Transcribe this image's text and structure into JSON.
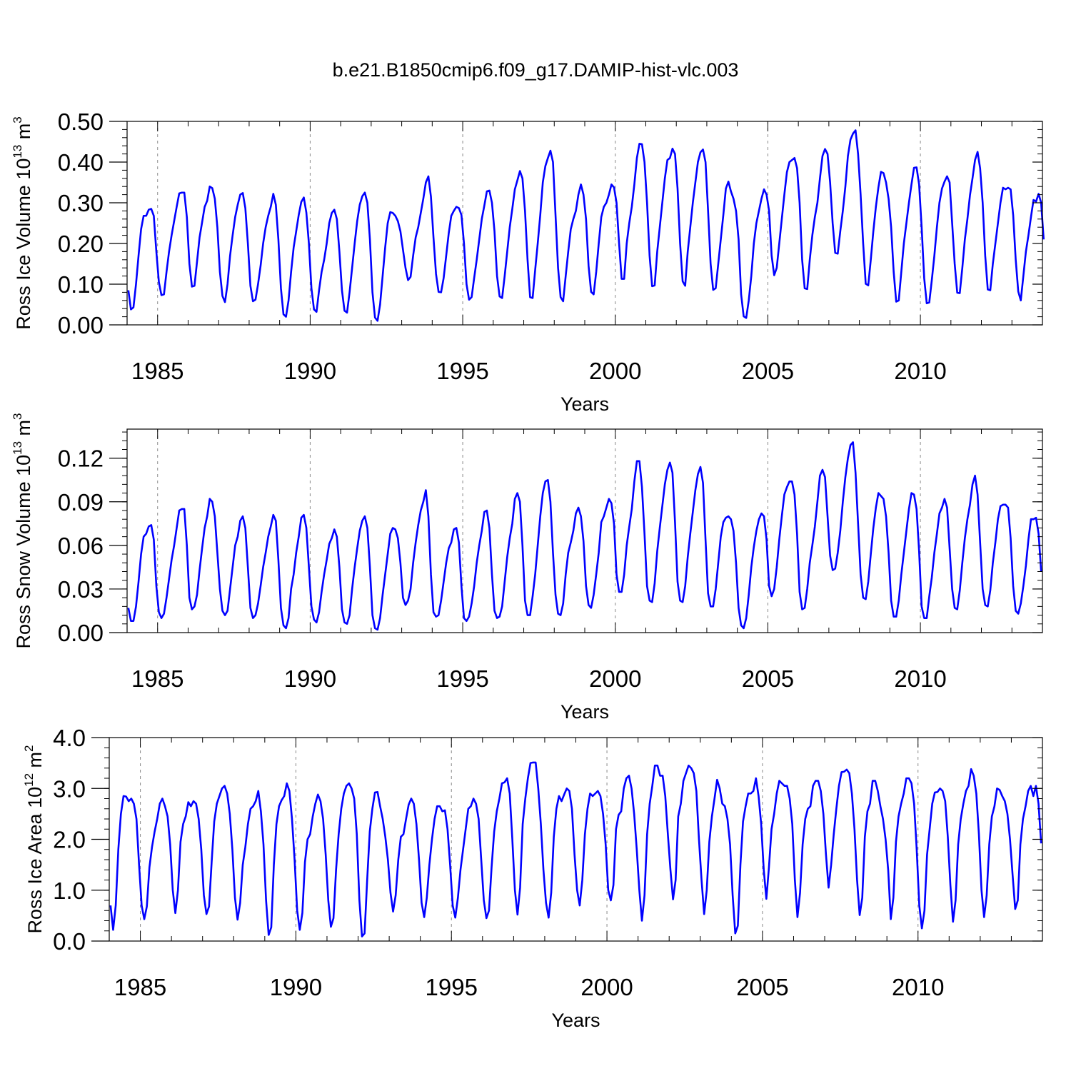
{
  "title": "b.e21.B1850cmip6.f09_g17.DAMIP-hist-vlc.003",
  "colors": {
    "line": "#0000ff",
    "axis": "#000000",
    "grid": "#888888"
  },
  "chart_data": [
    {
      "type": "line",
      "ylabel_main": "Ross Ice Volume 10",
      "ylabel_exp": "13",
      "ylabel_unit": " m",
      "ylabel_unit_exp": "3",
      "xlabel": "Years",
      "xlim": [
        1984.0,
        2014.0
      ],
      "ylim": [
        0.0,
        0.5
      ],
      "x_ticks": [
        1985,
        1990,
        1995,
        2000,
        2005,
        2010
      ],
      "x_tick_labels": [
        "1985",
        "1990",
        "1995",
        "2000",
        "2005",
        "2010"
      ],
      "y_ticks": [
        0.0,
        0.1,
        0.2,
        0.3,
        0.4,
        0.5
      ],
      "y_tick_labels": [
        "0.00",
        "0.10",
        "0.20",
        "0.30",
        "0.40",
        "0.50"
      ],
      "grid": "dashed vertical lines at major x ticks",
      "x_start": 1984.042,
      "x_step": 0.08333,
      "values": [
        0.085,
        0.038,
        0.043,
        0.1,
        0.17,
        0.235,
        0.268,
        0.268,
        0.283,
        0.285,
        0.268,
        0.18,
        0.105,
        0.073,
        0.075,
        0.13,
        0.18,
        0.22,
        0.255,
        0.29,
        0.323,
        0.325,
        0.325,
        0.265,
        0.15,
        0.094,
        0.096,
        0.155,
        0.215,
        0.252,
        0.29,
        0.305,
        0.34,
        0.336,
        0.31,
        0.24,
        0.13,
        0.071,
        0.056,
        0.1,
        0.17,
        0.22,
        0.265,
        0.295,
        0.32,
        0.324,
        0.287,
        0.2,
        0.096,
        0.058,
        0.062,
        0.1,
        0.145,
        0.2,
        0.24,
        0.268,
        0.29,
        0.322,
        0.295,
        0.21,
        0.09,
        0.026,
        0.02,
        0.06,
        0.13,
        0.19,
        0.23,
        0.27,
        0.302,
        0.313,
        0.276,
        0.2,
        0.09,
        0.038,
        0.032,
        0.085,
        0.13,
        0.16,
        0.2,
        0.25,
        0.275,
        0.283,
        0.26,
        0.18,
        0.085,
        0.035,
        0.03,
        0.08,
        0.14,
        0.2,
        0.255,
        0.295,
        0.316,
        0.325,
        0.3,
        0.21,
        0.08,
        0.018,
        0.01,
        0.05,
        0.12,
        0.19,
        0.25,
        0.277,
        0.275,
        0.268,
        0.255,
        0.23,
        0.185,
        0.14,
        0.11,
        0.118,
        0.17,
        0.215,
        0.24,
        0.275,
        0.31,
        0.35,
        0.365,
        0.315,
        0.215,
        0.125,
        0.081,
        0.08,
        0.115,
        0.17,
        0.225,
        0.268,
        0.28,
        0.29,
        0.287,
        0.27,
        0.2,
        0.1,
        0.062,
        0.068,
        0.115,
        0.16,
        0.21,
        0.26,
        0.293,
        0.328,
        0.33,
        0.3,
        0.23,
        0.12,
        0.07,
        0.066,
        0.12,
        0.18,
        0.24,
        0.285,
        0.333,
        0.355,
        0.378,
        0.36,
        0.28,
        0.16,
        0.068,
        0.066,
        0.135,
        0.2,
        0.27,
        0.35,
        0.39,
        0.41,
        0.428,
        0.4,
        0.27,
        0.14,
        0.068,
        0.058,
        0.12,
        0.18,
        0.235,
        0.26,
        0.28,
        0.32,
        0.345,
        0.32,
        0.26,
        0.145,
        0.081,
        0.075,
        0.13,
        0.2,
        0.265,
        0.29,
        0.3,
        0.32,
        0.345,
        0.338,
        0.3,
        0.2,
        0.113,
        0.113,
        0.2,
        0.25,
        0.29,
        0.345,
        0.41,
        0.445,
        0.444,
        0.4,
        0.3,
        0.17,
        0.095,
        0.097,
        0.18,
        0.24,
        0.3,
        0.36,
        0.405,
        0.41,
        0.433,
        0.42,
        0.335,
        0.2,
        0.107,
        0.096,
        0.18,
        0.24,
        0.3,
        0.35,
        0.4,
        0.424,
        0.431,
        0.4,
        0.28,
        0.15,
        0.086,
        0.09,
        0.15,
        0.21,
        0.27,
        0.335,
        0.352,
        0.328,
        0.31,
        0.28,
        0.21,
        0.075,
        0.021,
        0.017,
        0.06,
        0.12,
        0.2,
        0.25,
        0.28,
        0.31,
        0.333,
        0.32,
        0.28,
        0.17,
        0.122,
        0.14,
        0.2,
        0.26,
        0.32,
        0.375,
        0.4,
        0.405,
        0.41,
        0.385,
        0.3,
        0.16,
        0.09,
        0.088,
        0.16,
        0.22,
        0.265,
        0.3,
        0.36,
        0.415,
        0.432,
        0.42,
        0.35,
        0.25,
        0.177,
        0.175,
        0.23,
        0.28,
        0.34,
        0.415,
        0.455,
        0.47,
        0.478,
        0.42,
        0.32,
        0.2,
        0.101,
        0.097,
        0.16,
        0.23,
        0.29,
        0.338,
        0.376,
        0.373,
        0.35,
        0.31,
        0.24,
        0.13,
        0.057,
        0.06,
        0.13,
        0.2,
        0.25,
        0.3,
        0.345,
        0.386,
        0.387,
        0.345,
        0.24,
        0.115,
        0.053,
        0.055,
        0.11,
        0.17,
        0.24,
        0.3,
        0.335,
        0.352,
        0.365,
        0.35,
        0.25,
        0.15,
        0.079,
        0.078,
        0.14,
        0.21,
        0.26,
        0.318,
        0.36,
        0.405,
        0.425,
        0.385,
        0.3,
        0.17,
        0.087,
        0.085,
        0.15,
        0.2,
        0.25,
        0.3,
        0.337,
        0.333,
        0.337,
        0.333,
        0.27,
        0.16,
        0.082,
        0.06,
        0.12,
        0.18,
        0.22,
        0.265,
        0.307,
        0.303,
        0.322,
        0.3,
        0.21
      ]
    },
    {
      "type": "line",
      "ylabel_main": "Ross Snow Volume 10",
      "ylabel_exp": "13",
      "ylabel_unit": " m",
      "ylabel_unit_exp": "3",
      "xlabel": "Years",
      "xlim": [
        1984.0,
        2014.0
      ],
      "ylim": [
        0.0,
        0.14
      ],
      "x_ticks": [
        1985,
        1990,
        1995,
        2000,
        2005,
        2010
      ],
      "x_tick_labels": [
        "1985",
        "1990",
        "1995",
        "2000",
        "2005",
        "2010"
      ],
      "y_ticks": [
        0.0,
        0.03,
        0.06,
        0.09,
        0.12
      ],
      "y_tick_labels": [
        "0.00",
        "0.03",
        "0.06",
        "0.09",
        "0.12"
      ],
      "grid": "dashed vertical lines at major x ticks",
      "x_start": 1984.042,
      "x_step": 0.08333,
      "values": [
        0.017,
        0.008,
        0.008,
        0.018,
        0.035,
        0.054,
        0.066,
        0.068,
        0.073,
        0.074,
        0.064,
        0.032,
        0.014,
        0.01,
        0.013,
        0.024,
        0.037,
        0.05,
        0.06,
        0.072,
        0.084,
        0.085,
        0.085,
        0.06,
        0.024,
        0.016,
        0.018,
        0.026,
        0.043,
        0.058,
        0.072,
        0.08,
        0.092,
        0.09,
        0.08,
        0.055,
        0.03,
        0.015,
        0.012,
        0.015,
        0.03,
        0.045,
        0.06,
        0.066,
        0.077,
        0.08,
        0.072,
        0.045,
        0.017,
        0.01,
        0.012,
        0.02,
        0.032,
        0.045,
        0.055,
        0.066,
        0.073,
        0.081,
        0.077,
        0.05,
        0.017,
        0.005,
        0.003,
        0.01,
        0.03,
        0.04,
        0.055,
        0.066,
        0.079,
        0.081,
        0.072,
        0.045,
        0.018,
        0.009,
        0.007,
        0.014,
        0.028,
        0.04,
        0.05,
        0.061,
        0.065,
        0.071,
        0.066,
        0.045,
        0.016,
        0.007,
        0.006,
        0.012,
        0.03,
        0.045,
        0.058,
        0.07,
        0.077,
        0.08,
        0.072,
        0.045,
        0.012,
        0.003,
        0.002,
        0.01,
        0.026,
        0.04,
        0.054,
        0.068,
        0.072,
        0.071,
        0.065,
        0.048,
        0.024,
        0.019,
        0.022,
        0.03,
        0.048,
        0.062,
        0.074,
        0.084,
        0.09,
        0.098,
        0.08,
        0.04,
        0.014,
        0.011,
        0.012,
        0.022,
        0.035,
        0.048,
        0.058,
        0.062,
        0.071,
        0.072,
        0.062,
        0.032,
        0.01,
        0.008,
        0.011,
        0.02,
        0.032,
        0.048,
        0.06,
        0.07,
        0.083,
        0.084,
        0.072,
        0.04,
        0.015,
        0.01,
        0.011,
        0.018,
        0.035,
        0.052,
        0.065,
        0.075,
        0.092,
        0.096,
        0.09,
        0.06,
        0.022,
        0.012,
        0.012,
        0.025,
        0.04,
        0.06,
        0.08,
        0.096,
        0.104,
        0.105,
        0.09,
        0.055,
        0.026,
        0.013,
        0.012,
        0.02,
        0.04,
        0.055,
        0.062,
        0.07,
        0.082,
        0.086,
        0.08,
        0.063,
        0.032,
        0.019,
        0.017,
        0.026,
        0.04,
        0.055,
        0.076,
        0.08,
        0.086,
        0.092,
        0.089,
        0.075,
        0.04,
        0.028,
        0.028,
        0.04,
        0.06,
        0.073,
        0.085,
        0.104,
        0.118,
        0.118,
        0.1,
        0.068,
        0.032,
        0.022,
        0.021,
        0.034,
        0.056,
        0.072,
        0.087,
        0.102,
        0.112,
        0.117,
        0.11,
        0.076,
        0.035,
        0.022,
        0.021,
        0.032,
        0.052,
        0.068,
        0.083,
        0.098,
        0.109,
        0.114,
        0.103,
        0.064,
        0.027,
        0.018,
        0.018,
        0.03,
        0.048,
        0.066,
        0.076,
        0.079,
        0.08,
        0.078,
        0.07,
        0.048,
        0.017,
        0.005,
        0.003,
        0.01,
        0.026,
        0.045,
        0.059,
        0.07,
        0.078,
        0.082,
        0.08,
        0.064,
        0.032,
        0.025,
        0.03,
        0.045,
        0.064,
        0.08,
        0.095,
        0.1,
        0.104,
        0.104,
        0.095,
        0.068,
        0.028,
        0.016,
        0.017,
        0.03,
        0.048,
        0.06,
        0.073,
        0.09,
        0.108,
        0.112,
        0.107,
        0.08,
        0.053,
        0.043,
        0.044,
        0.055,
        0.07,
        0.09,
        0.107,
        0.12,
        0.129,
        0.131,
        0.11,
        0.075,
        0.04,
        0.024,
        0.023,
        0.035,
        0.054,
        0.072,
        0.086,
        0.096,
        0.094,
        0.092,
        0.08,
        0.055,
        0.022,
        0.011,
        0.011,
        0.022,
        0.04,
        0.055,
        0.07,
        0.085,
        0.096,
        0.095,
        0.085,
        0.056,
        0.018,
        0.01,
        0.01,
        0.025,
        0.038,
        0.055,
        0.068,
        0.082,
        0.086,
        0.092,
        0.086,
        0.058,
        0.03,
        0.017,
        0.016,
        0.029,
        0.048,
        0.065,
        0.078,
        0.088,
        0.102,
        0.108,
        0.095,
        0.062,
        0.03,
        0.019,
        0.018,
        0.029,
        0.048,
        0.062,
        0.078,
        0.087,
        0.088,
        0.088,
        0.086,
        0.065,
        0.032,
        0.015,
        0.013,
        0.02,
        0.032,
        0.046,
        0.064,
        0.078,
        0.078,
        0.079,
        0.068,
        0.042
      ]
    },
    {
      "type": "line",
      "ylabel_main": "Ross Ice Area 10",
      "ylabel_exp": "12",
      "ylabel_unit": " m",
      "ylabel_unit_exp": "2",
      "xlabel": "Years",
      "xlim": [
        1984.0,
        2014.0
      ],
      "ylim": [
        0.0,
        4.0
      ],
      "x_ticks": [
        1985,
        1990,
        1995,
        2000,
        2005,
        2010
      ],
      "x_tick_labels": [
        "1985",
        "1990",
        "1995",
        "2000",
        "2005",
        "2010"
      ],
      "y_ticks": [
        0.0,
        1.0,
        2.0,
        3.0,
        4.0
      ],
      "y_tick_labels": [
        "0.0",
        "1.0",
        "2.0",
        "3.0",
        "4.0"
      ],
      "grid": "dashed vertical lines at major x ticks",
      "x_start": 1984.042,
      "x_step": 0.08333,
      "values": [
        0.7,
        0.22,
        0.7,
        1.8,
        2.5,
        2.85,
        2.84,
        2.75,
        2.8,
        2.7,
        2.4,
        1.5,
        0.7,
        0.43,
        0.68,
        1.45,
        1.85,
        2.15,
        2.4,
        2.7,
        2.8,
        2.65,
        2.45,
        1.9,
        1.0,
        0.55,
        1.0,
        1.95,
        2.3,
        2.45,
        2.73,
        2.65,
        2.75,
        2.7,
        2.4,
        1.8,
        0.9,
        0.53,
        0.68,
        1.55,
        2.35,
        2.7,
        2.85,
        3.0,
        3.05,
        2.9,
        2.5,
        1.8,
        0.85,
        0.42,
        0.75,
        1.5,
        1.85,
        2.3,
        2.6,
        2.65,
        2.75,
        2.95,
        2.55,
        1.9,
        0.8,
        0.12,
        0.27,
        1.5,
        2.3,
        2.65,
        2.77,
        2.85,
        3.1,
        2.95,
        2.4,
        1.6,
        0.6,
        0.22,
        0.55,
        1.55,
        2.0,
        2.1,
        2.45,
        2.7,
        2.88,
        2.75,
        2.4,
        1.7,
        0.8,
        0.28,
        0.45,
        1.4,
        2.1,
        2.6,
        2.9,
        3.05,
        3.1,
        3.0,
        2.8,
        2.1,
        0.8,
        0.09,
        0.15,
        1.2,
        2.15,
        2.6,
        2.92,
        2.93,
        2.65,
        2.4,
        2.05,
        1.6,
        0.95,
        0.58,
        0.9,
        1.6,
        2.05,
        2.1,
        2.4,
        2.68,
        2.8,
        2.7,
        2.3,
        1.6,
        0.75,
        0.47,
        0.85,
        1.5,
        2.0,
        2.4,
        2.65,
        2.65,
        2.55,
        2.57,
        2.2,
        1.5,
        0.7,
        0.46,
        0.85,
        1.4,
        1.8,
        2.2,
        2.6,
        2.65,
        2.8,
        2.7,
        2.4,
        1.6,
        0.8,
        0.45,
        0.6,
        1.45,
        2.15,
        2.55,
        2.8,
        3.1,
        3.12,
        3.2,
        2.9,
        2.0,
        1.0,
        0.52,
        1.05,
        2.3,
        2.8,
        3.2,
        3.5,
        3.51,
        3.51,
        3.0,
        2.3,
        1.4,
        0.75,
        0.46,
        0.95,
        2.05,
        2.6,
        2.85,
        2.75,
        2.88,
        3.0,
        2.95,
        2.6,
        1.7,
        1.0,
        0.7,
        1.2,
        2.1,
        2.6,
        2.9,
        2.85,
        2.9,
        2.95,
        2.85,
        2.5,
        1.9,
        1.0,
        0.8,
        1.1,
        2.2,
        2.48,
        2.55,
        3.0,
        3.2,
        3.25,
        3.0,
        2.5,
        1.8,
        1.0,
        0.4,
        0.9,
        2.1,
        2.7,
        3.05,
        3.45,
        3.45,
        3.25,
        3.25,
        2.85,
        2.1,
        1.4,
        0.82,
        1.2,
        2.45,
        2.7,
        3.15,
        3.3,
        3.45,
        3.4,
        3.3,
        2.95,
        2.0,
        1.2,
        0.53,
        1.0,
        1.95,
        2.45,
        2.8,
        3.17,
        3.0,
        2.7,
        2.65,
        2.4,
        1.9,
        0.9,
        0.15,
        0.3,
        1.5,
        2.35,
        2.65,
        2.9,
        2.9,
        2.95,
        3.2,
        2.85,
        2.3,
        1.4,
        0.83,
        1.45,
        2.2,
        2.5,
        2.9,
        3.15,
        3.1,
        3.05,
        3.05,
        2.8,
        2.3,
        1.2,
        0.47,
        0.95,
        1.9,
        2.4,
        2.6,
        2.65,
        3.05,
        3.15,
        3.15,
        2.95,
        2.5,
        1.7,
        1.05,
        1.5,
        2.1,
        2.6,
        3.05,
        3.32,
        3.33,
        3.37,
        3.3,
        2.9,
        2.2,
        1.2,
        0.51,
        0.85,
        2.05,
        2.55,
        2.7,
        3.15,
        3.15,
        2.95,
        2.65,
        2.4,
        2.0,
        1.4,
        0.43,
        0.85,
        1.95,
        2.45,
        2.7,
        2.9,
        3.2,
        3.2,
        3.1,
        2.7,
        1.8,
        0.7,
        0.25,
        0.6,
        1.7,
        2.2,
        2.7,
        2.92,
        2.93,
        3.0,
        2.95,
        2.75,
        2.05,
        1.1,
        0.38,
        0.8,
        1.9,
        2.4,
        2.7,
        2.95,
        3.05,
        3.38,
        3.25,
        2.9,
        2.1,
        1.0,
        0.47,
        0.9,
        1.9,
        2.45,
        2.65,
        3.0,
        2.97,
        2.85,
        2.75,
        2.5,
        2.0,
        1.3,
        0.63,
        0.8,
        1.9,
        2.4,
        2.65,
        2.95,
        3.05,
        2.85,
        3.05,
        2.7,
        1.92
      ]
    }
  ]
}
